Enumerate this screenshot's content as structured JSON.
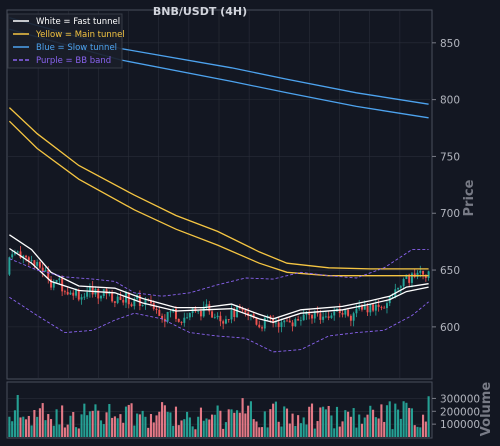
{
  "chart_data": {
    "type": "candlestick",
    "title": "BNB/USDT (4H)",
    "price_axis": {
      "label": "Price",
      "ticks": [
        600,
        650,
        700,
        750,
        800,
        850
      ],
      "ylim": [
        555,
        878
      ]
    },
    "volume_axis": {
      "label": "Volume",
      "ticks": [
        100000,
        200000,
        300000
      ],
      "tick_labels": [
        "100000",
        "200000",
        "300000"
      ],
      "ylim": [
        0,
        420000
      ]
    },
    "n_bars": 152,
    "grid": true,
    "legend": {
      "position": "top-left",
      "entries": [
        {
          "label": "White = Fast tunnel",
          "color": "#ffffff",
          "style": "solid"
        },
        {
          "label": "Yellow = Main tunnel",
          "color": "#f5c542",
          "style": "solid"
        },
        {
          "label": "Blue = Slow tunnel",
          "color": "#4da3ef",
          "style": "solid"
        },
        {
          "label": "Purple = BB band",
          "color": "#8a63f0",
          "style": "dashed"
        }
      ]
    },
    "colors": {
      "background": "#131722",
      "grid": "#2a2e39",
      "up": "#26a69a",
      "down": "#ef5350",
      "volume_up": "#26a69a",
      "volume_down": "#ef7e8c"
    },
    "series": [
      {
        "name": "Slow tunnel upper",
        "color": "#4da3ef",
        "points": [
          [
            0,
            872
          ],
          [
            40,
            845
          ],
          [
            80,
            828
          ],
          [
            100,
            818
          ],
          [
            125,
            806
          ],
          [
            151,
            796
          ]
        ]
      },
      {
        "name": "Slow tunnel lower",
        "color": "#4da3ef",
        "points": [
          [
            0,
            862
          ],
          [
            40,
            835
          ],
          [
            80,
            816
          ],
          [
            100,
            806
          ],
          [
            125,
            794
          ],
          [
            151,
            784
          ]
        ]
      },
      {
        "name": "Main tunnel upper",
        "color": "#f5c542",
        "points": [
          [
            0,
            793
          ],
          [
            10,
            770
          ],
          [
            25,
            742
          ],
          [
            45,
            716
          ],
          [
            60,
            698
          ],
          [
            75,
            684
          ],
          [
            90,
            666
          ],
          [
            100,
            656
          ],
          [
            115,
            652
          ],
          [
            130,
            651
          ],
          [
            151,
            651
          ]
        ]
      },
      {
        "name": "Main tunnel lower",
        "color": "#f5c542",
        "points": [
          [
            0,
            781
          ],
          [
            10,
            757
          ],
          [
            25,
            730
          ],
          [
            45,
            703
          ],
          [
            60,
            686
          ],
          [
            75,
            672
          ],
          [
            90,
            656
          ],
          [
            100,
            648
          ],
          [
            115,
            645
          ],
          [
            130,
            645
          ],
          [
            151,
            645
          ]
        ]
      },
      {
        "name": "Fast tunnel upper",
        "color": "#ffffff",
        "points": [
          [
            0,
            681
          ],
          [
            8,
            668
          ],
          [
            15,
            648
          ],
          [
            25,
            636
          ],
          [
            38,
            634
          ],
          [
            48,
            625
          ],
          [
            60,
            617
          ],
          [
            70,
            617
          ],
          [
            80,
            620
          ],
          [
            90,
            611
          ],
          [
            95,
            607
          ],
          [
            105,
            615
          ],
          [
            120,
            618
          ],
          [
            130,
            623
          ],
          [
            137,
            627
          ],
          [
            143,
            635
          ],
          [
            151,
            638
          ]
        ]
      },
      {
        "name": "Fast tunnel lower",
        "color": "#ffffff",
        "points": [
          [
            0,
            669
          ],
          [
            8,
            656
          ],
          [
            15,
            640
          ],
          [
            25,
            632
          ],
          [
            38,
            630
          ],
          [
            48,
            621
          ],
          [
            60,
            614
          ],
          [
            70,
            615
          ],
          [
            80,
            616
          ],
          [
            90,
            607
          ],
          [
            95,
            604
          ],
          [
            105,
            612
          ],
          [
            120,
            615
          ],
          [
            130,
            620
          ],
          [
            137,
            624
          ],
          [
            143,
            631
          ],
          [
            151,
            635
          ]
        ]
      },
      {
        "name": "BB upper",
        "color": "#8a63f0",
        "style": "dashed",
        "points": [
          [
            0,
            660
          ],
          [
            10,
            650
          ],
          [
            20,
            644
          ],
          [
            30,
            642
          ],
          [
            38,
            640
          ],
          [
            45,
            630
          ],
          [
            55,
            627
          ],
          [
            65,
            630
          ],
          [
            75,
            637
          ],
          [
            85,
            643
          ],
          [
            95,
            642
          ],
          [
            105,
            648
          ],
          [
            115,
            645
          ],
          [
            125,
            643
          ],
          [
            135,
            652
          ],
          [
            145,
            668
          ],
          [
            151,
            668
          ]
        ]
      },
      {
        "name": "BB lower",
        "color": "#8a63f0",
        "style": "dashed",
        "points": [
          [
            0,
            626
          ],
          [
            10,
            610
          ],
          [
            20,
            595
          ],
          [
            30,
            597
          ],
          [
            38,
            606
          ],
          [
            45,
            612
          ],
          [
            55,
            607
          ],
          [
            65,
            595
          ],
          [
            75,
            592
          ],
          [
            85,
            590
          ],
          [
            95,
            578
          ],
          [
            105,
            580
          ],
          [
            115,
            592
          ],
          [
            125,
            595
          ],
          [
            135,
            597
          ],
          [
            145,
            610
          ],
          [
            151,
            622
          ]
        ]
      }
    ]
  }
}
